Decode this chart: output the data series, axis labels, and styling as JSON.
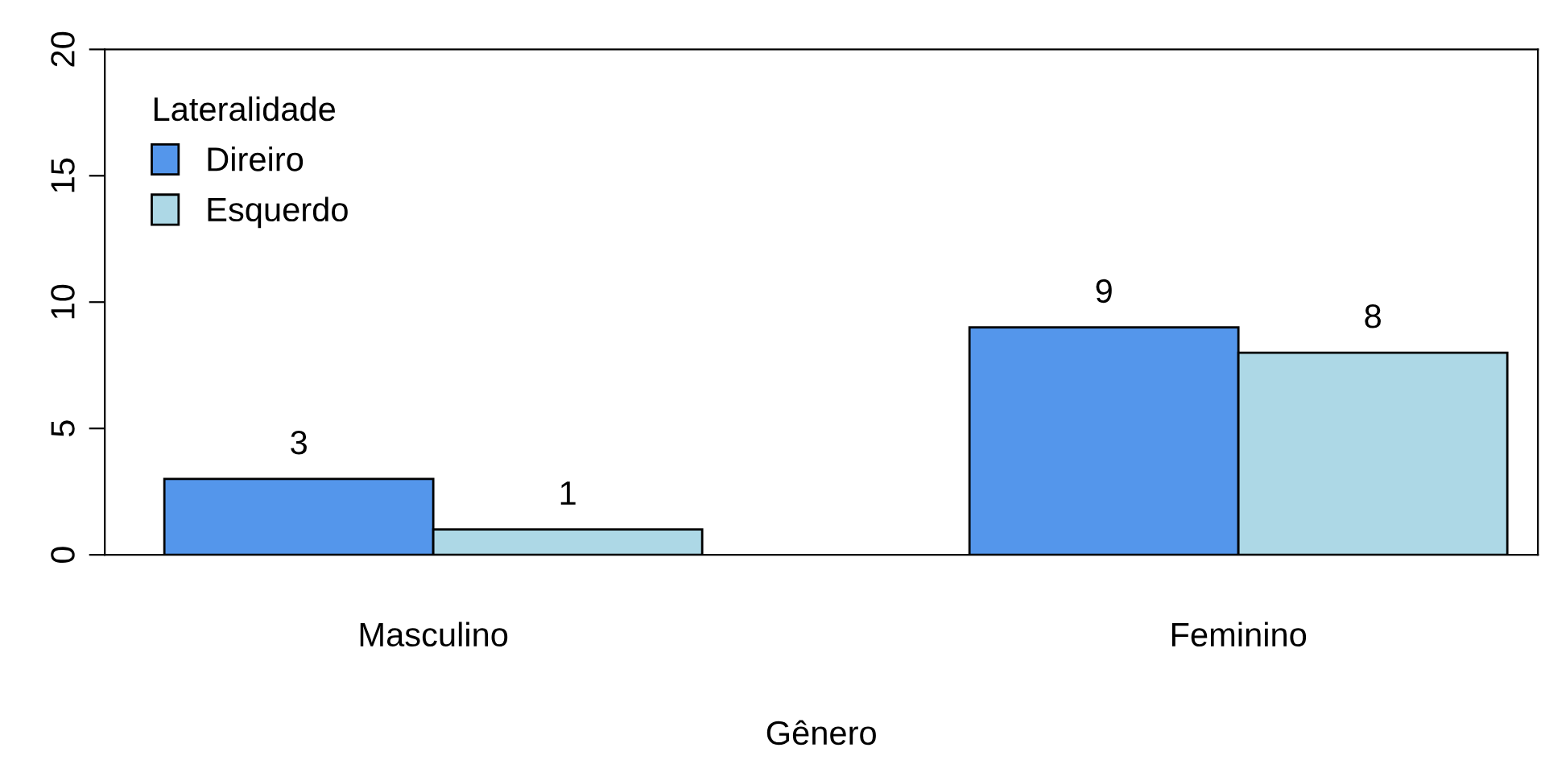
{
  "chart_data": {
    "type": "bar",
    "xlabel": "Gênero",
    "legend_title": "Lateralidade",
    "categories": [
      "Masculino",
      "Feminino"
    ],
    "series": [
      {
        "name": "Direiro",
        "color": "#5496eb",
        "values": [
          3,
          9
        ]
      },
      {
        "name": "Esquerdo",
        "color": "#add8e6",
        "values": [
          1,
          8
        ]
      }
    ],
    "ylim": [
      0,
      20
    ],
    "yticks": [
      0,
      5,
      10,
      15,
      20
    ],
    "data_labels": true,
    "legend": "top left",
    "grid": false
  }
}
